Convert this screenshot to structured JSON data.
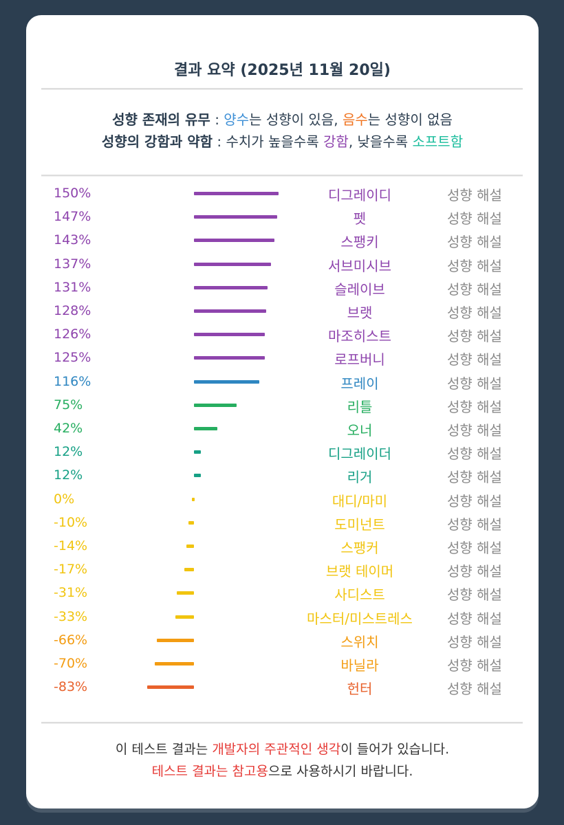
{
  "title": "결과 요약 (2025년 11월 20일)",
  "legend": {
    "line1": {
      "label": "성향 존재의 유무",
      "sep": " : ",
      "pos_word": "양수",
      "pos_rest": "는 성향이 있음, ",
      "neg_word": "음수",
      "neg_rest": "는 성향이 없음"
    },
    "line2": {
      "label": "성향의 강함과 약함",
      "sep": " : 수치가 높을수록 ",
      "strong": "강함",
      "mid": ", 낮을수록 ",
      "soft": "소프트함"
    }
  },
  "explain_label": "성향 해설",
  "chart_data": {
    "type": "bar",
    "orientation": "horizontal",
    "zero_baseline": true,
    "categories": [
      "디그레이디",
      "펫",
      "스팽키",
      "서브미시브",
      "슬레이브",
      "브랫",
      "마조히스트",
      "로프버니",
      "프레이",
      "리틀",
      "오너",
      "디그레이더",
      "리거",
      "대디/마미",
      "도미넌트",
      "스팽커",
      "브랫 테이머",
      "사디스트",
      "마스터/미스트레스",
      "스위치",
      "바닐라",
      "헌터"
    ],
    "values": [
      150,
      147,
      143,
      137,
      131,
      128,
      126,
      125,
      116,
      75,
      42,
      12,
      12,
      0,
      -10,
      -14,
      -17,
      -31,
      -33,
      -66,
      -70,
      -83
    ],
    "value_labels": [
      "150%",
      "147%",
      "143%",
      "137%",
      "131%",
      "128%",
      "126%",
      "125%",
      "116%",
      "75%",
      "42%",
      "12%",
      "12%",
      "0%",
      "-10%",
      "-14%",
      "-17%",
      "-31%",
      "-33%",
      "-66%",
      "-70%",
      "-83%"
    ],
    "colors": [
      "#8e44ad",
      "#8e44ad",
      "#8e44ad",
      "#8e44ad",
      "#8e44ad",
      "#8e44ad",
      "#8e44ad",
      "#8e44ad",
      "#2e86c1",
      "#27ae60",
      "#27ae60",
      "#16a085",
      "#16a085",
      "#f1c40f",
      "#f1c40f",
      "#f1c40f",
      "#f1c40f",
      "#f1c40f",
      "#f1c40f",
      "#f39c12",
      "#f39c12",
      "#e8622c"
    ],
    "unit": "%"
  },
  "footer": {
    "line1_a": "이 테스트 결과는 ",
    "line1_b": "개발자의 주관적인 생각",
    "line1_c": "이 들어가 있습니다.",
    "line2_a": "테스트 결과는 참고용",
    "line2_b": "으로 사용하시기 바랍니다."
  }
}
